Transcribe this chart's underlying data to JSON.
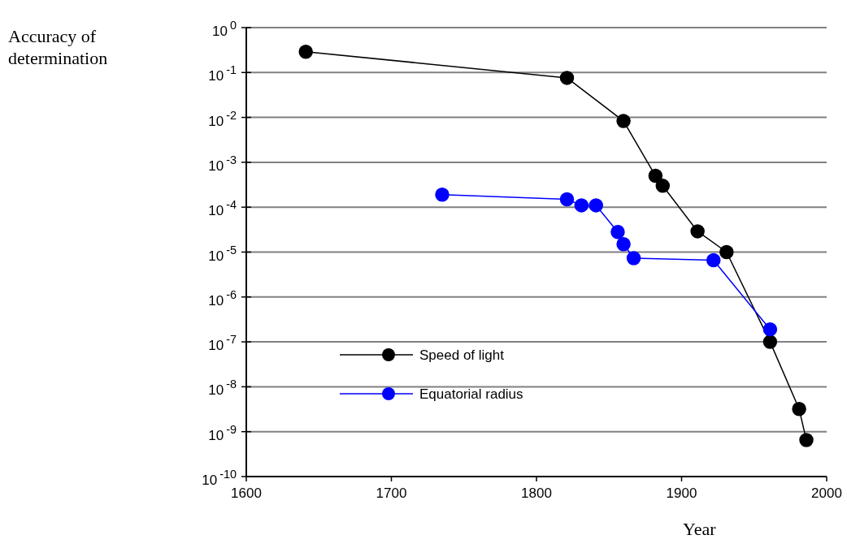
{
  "chart_data": {
    "type": "line",
    "xlabel": "Year",
    "annotations": [
      "Accuracy of determination"
    ],
    "log": "y",
    "grid": "y",
    "legend": "bottom left",
    "marker": "circle",
    "line_style": "solid",
    "xlim": [
      1600,
      2000
    ],
    "xticks": [
      1600,
      1700,
      1800,
      1900,
      2000
    ],
    "ylim": [
      1e-10,
      1
    ],
    "yticks": [
      {
        "value": 1,
        "label": "10$^{0}$"
      },
      {
        "value": 0.1,
        "label": "10$^{-1}$"
      },
      {
        "value": 0.01,
        "label": "10$^{-2}$"
      },
      {
        "value": 0.001,
        "label": "10$^{-3}$"
      },
      {
        "value": 0.0001,
        "label": "10$^{-4}$"
      },
      {
        "value": 1e-05,
        "label": "10$^{-5}$"
      },
      {
        "value": 1e-06,
        "label": "10$^{-6}$"
      },
      {
        "value": 1e-07,
        "label": "10$^{-7}$"
      },
      {
        "value": 1e-08,
        "label": "10$^{-8}$"
      },
      {
        "value": 1e-09,
        "label": "10$^{-9}$"
      },
      {
        "value": 1e-10,
        "label": "10$^{-10}$"
      }
    ],
    "series": [
      {
        "name": "Speed of light",
        "color": "#000000",
        "x": [
          1641,
          1821,
          1860,
          1882,
          1887,
          1911,
          1931,
          1961,
          1981,
          1986
        ],
        "values": [
          0.29,
          0.076,
          0.0083,
          0.0005,
          0.0003,
          2.9e-05,
          1e-05,
          1e-07,
          3.2e-09,
          6.5e-10
        ]
      },
      {
        "name": "Equatorial radius",
        "color": "#0000ff",
        "x": [
          1735,
          1821,
          1831,
          1841,
          1856,
          1860,
          1867,
          1922,
          1961
        ],
        "values": [
          0.00019,
          0.00015,
          0.00011,
          0.00011,
          2.8e-05,
          1.5e-05,
          7.3e-06,
          6.6e-06,
          1.9e-07
        ]
      }
    ]
  }
}
